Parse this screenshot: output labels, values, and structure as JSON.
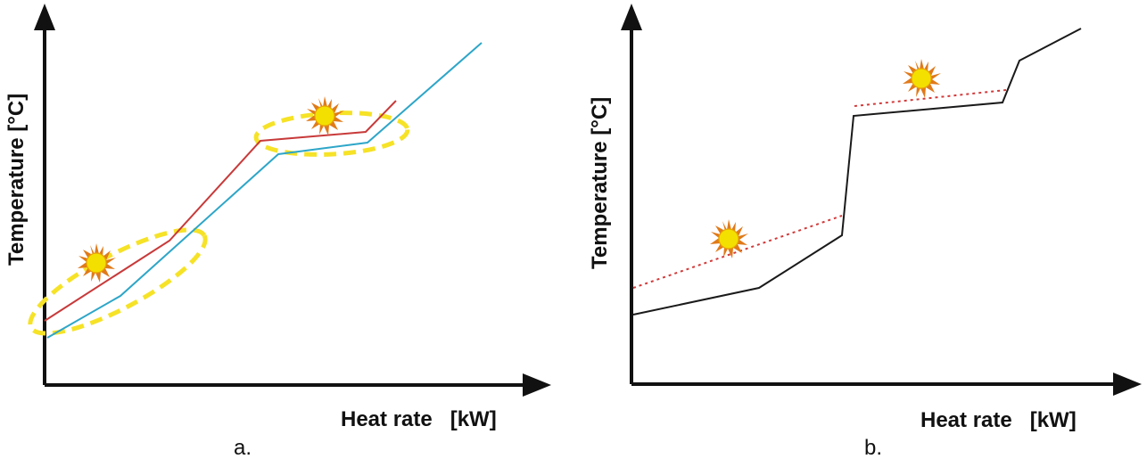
{
  "panels": [
    {
      "caption": "a.",
      "y_axis_title": "Temperature  [°C]",
      "x_axis_title": "Heat rate   [kW]",
      "colors": {
        "hot_line": "#c83a3a",
        "cold_line": "#2ea6c8",
        "highlight": "#f6e227",
        "sun": "#f3e000",
        "sun_rays": "#e07a1a"
      }
    },
    {
      "caption": "b.",
      "y_axis_title": "Temperature  [°C]",
      "x_axis_title": "Heat rate   [kW]",
      "colors": {
        "curve": "#1a1a1a",
        "dotted": "#d23a3a",
        "sun": "#f3e000",
        "sun_rays": "#e07a1a"
      }
    }
  ]
}
